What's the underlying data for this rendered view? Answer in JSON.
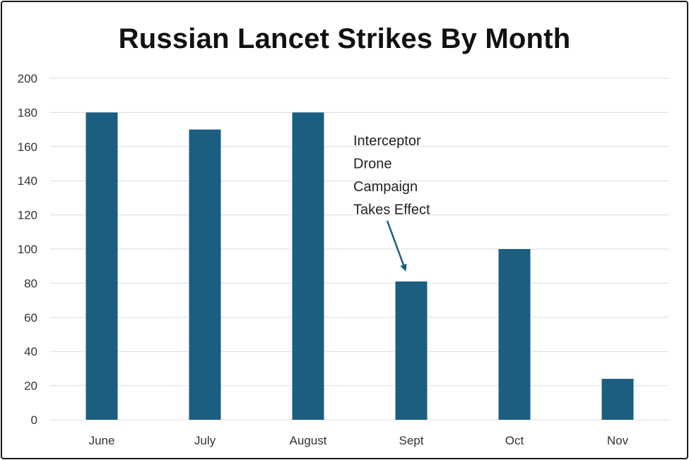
{
  "chart_data": {
    "type": "bar",
    "title": "Russian Lancet Strikes By Month",
    "categories": [
      "June",
      "July",
      "August",
      "Sept",
      "Oct",
      "Nov"
    ],
    "values": [
      180,
      170,
      180,
      81,
      100,
      24
    ],
    "ylim": [
      0,
      200
    ],
    "yticks": [
      0,
      20,
      40,
      60,
      80,
      100,
      120,
      140,
      160,
      180,
      200
    ],
    "grid": true,
    "legend": "none",
    "colors": {
      "bar": "#1b5e80",
      "grid": "#dddddd",
      "arrow": "#1b5e80"
    },
    "annotation": {
      "lines": [
        "Interceptor",
        "Drone",
        "Campaign",
        "Takes Effect"
      ],
      "target_category": "Sept"
    }
  }
}
